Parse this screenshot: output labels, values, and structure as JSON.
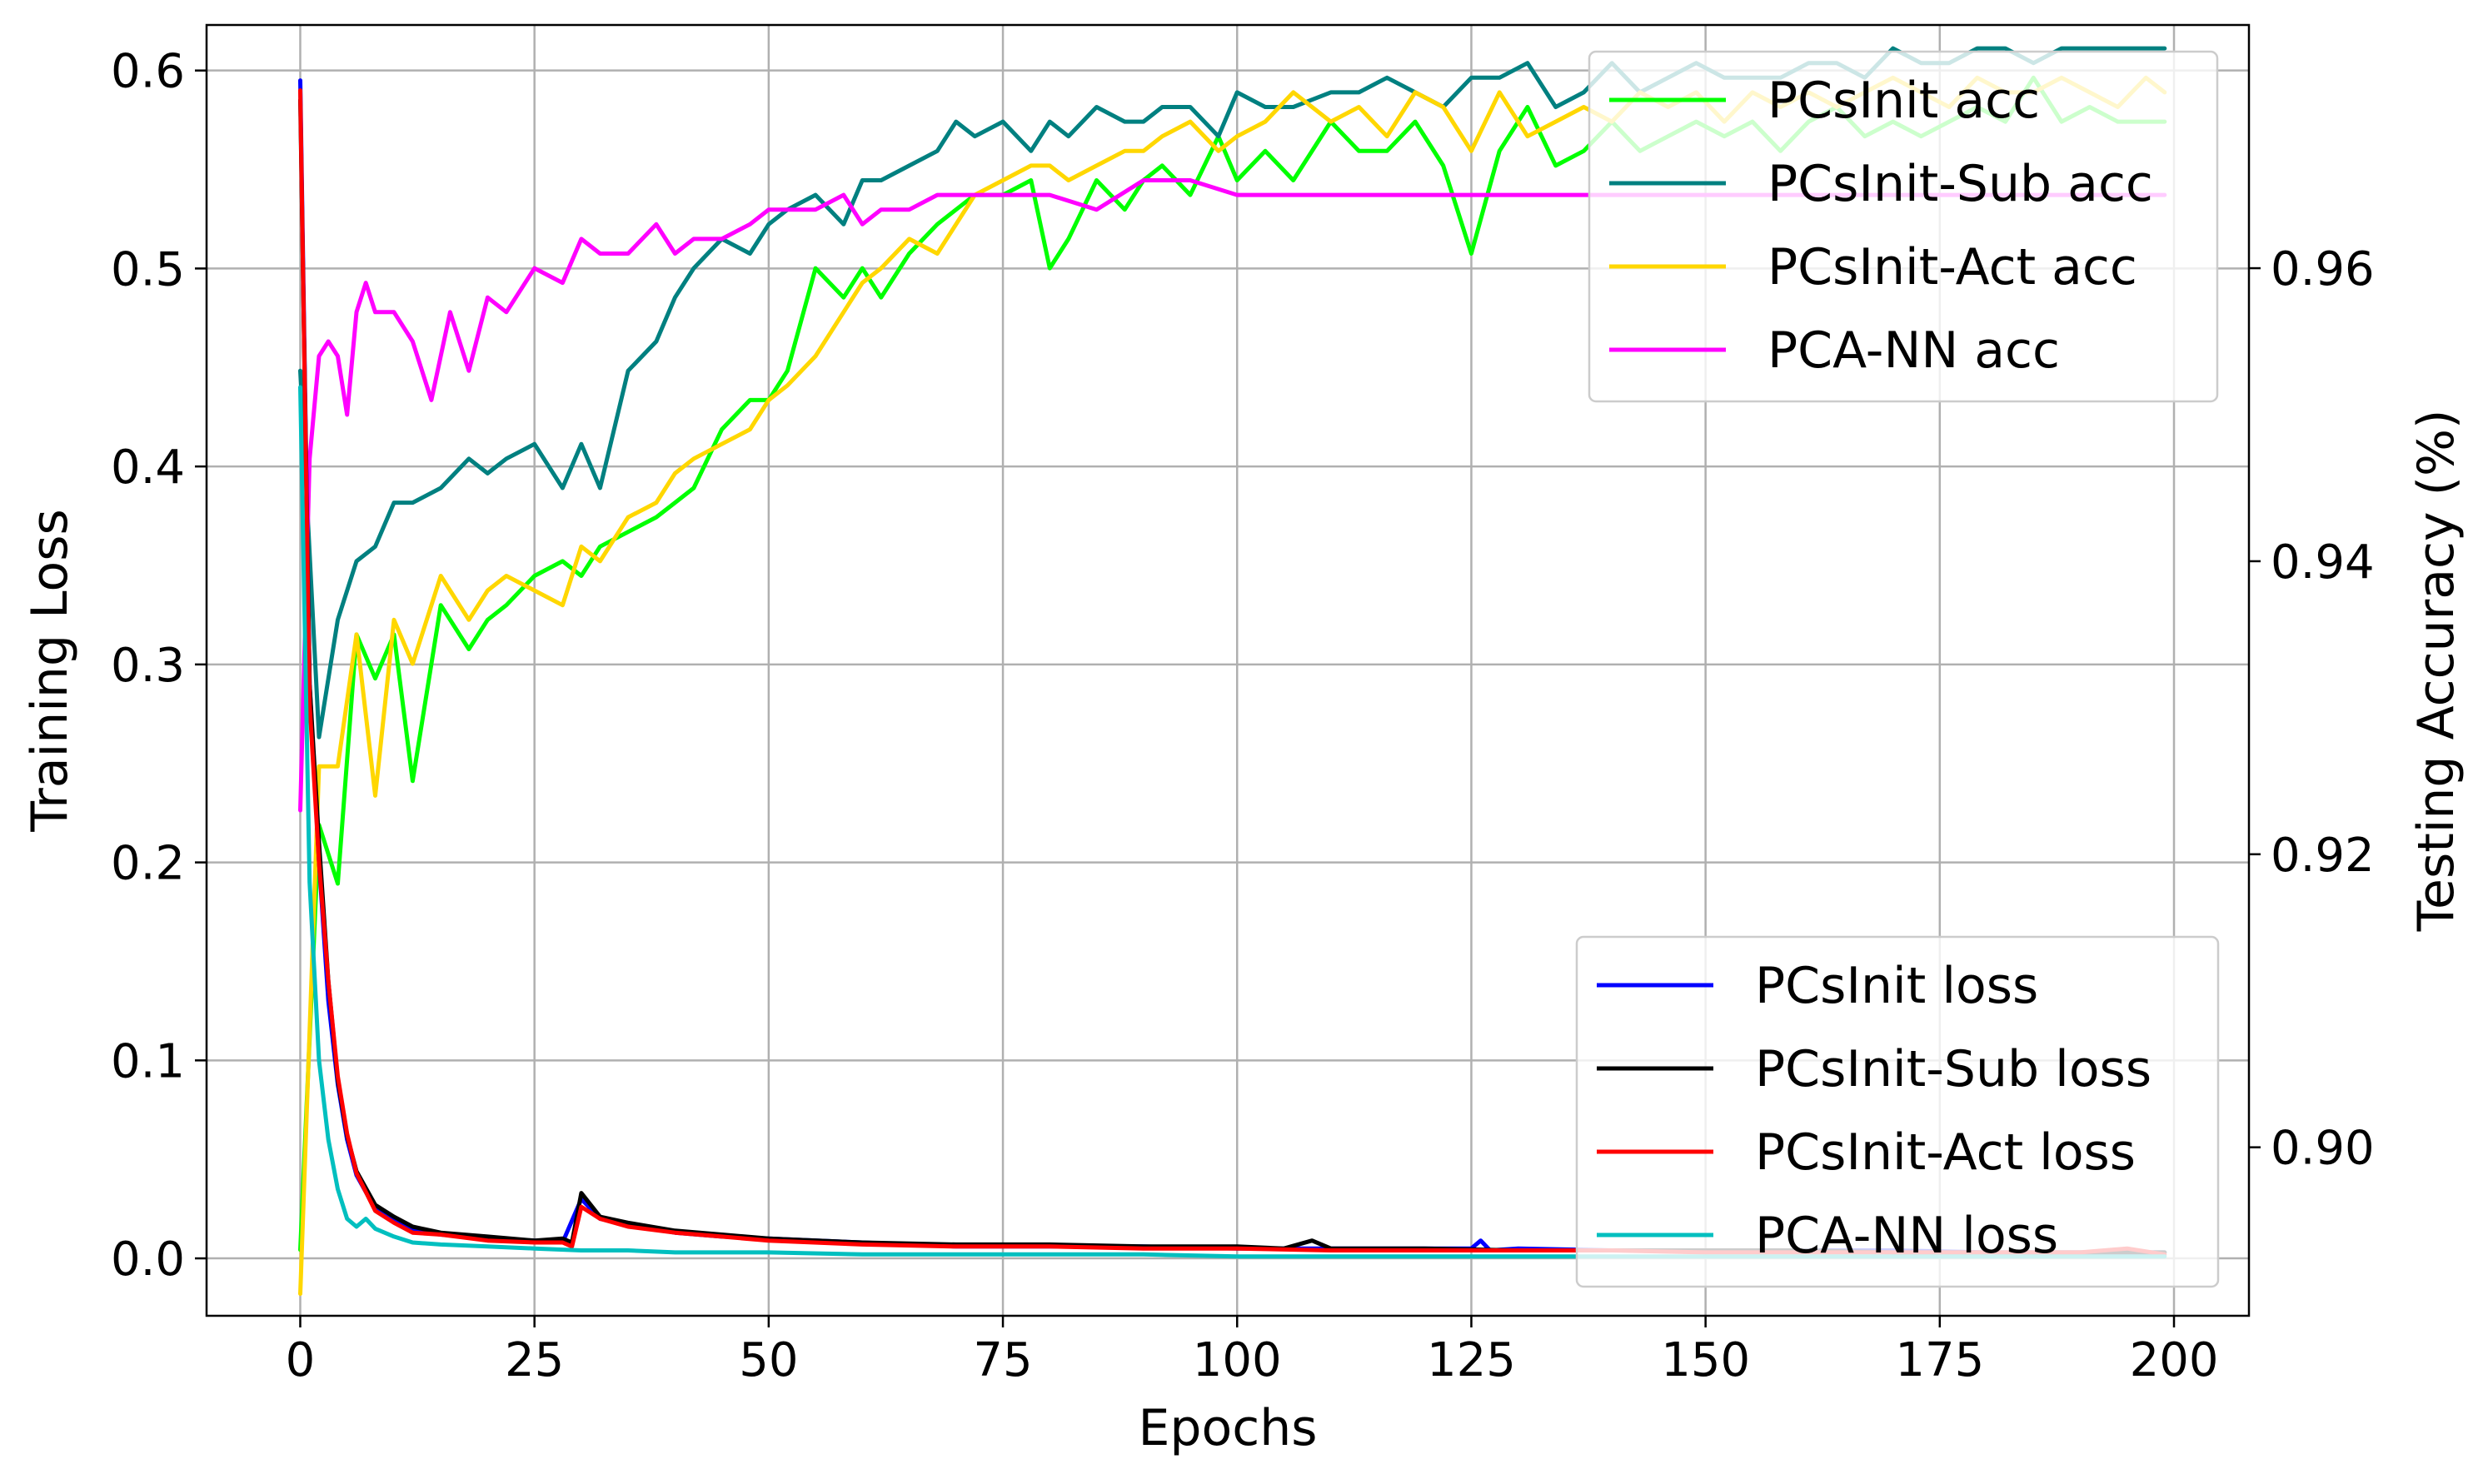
{
  "chart_data": {
    "type": "line",
    "xlabel": "Epochs",
    "ylabel": "Training Loss",
    "y2label": "Testing Accuracy (%)",
    "xlim": [
      -10,
      208
    ],
    "ylim": [
      -0.029,
      0.623
    ],
    "y2lim": [
      0.8885,
      0.9766
    ],
    "xticks": [
      0,
      25,
      50,
      75,
      100,
      125,
      150,
      175,
      200
    ],
    "yticks": [
      0.0,
      0.1,
      0.2,
      0.3,
      0.4,
      0.5,
      0.6
    ],
    "y2ticks": [
      0.9,
      0.92,
      0.94,
      0.96
    ],
    "xtick_labels": [
      "0",
      "25",
      "50",
      "75",
      "100",
      "125",
      "150",
      "175",
      "200"
    ],
    "ytick_labels": [
      "0.0",
      "0.1",
      "0.2",
      "0.3",
      "0.4",
      "0.5",
      "0.6"
    ],
    "y2tick_labels": [
      "0.90",
      "0.92",
      "0.94",
      "0.96"
    ],
    "grid": true,
    "acc_legend_position": "upper right",
    "loss_legend_position": "lower right",
    "acc_series": [
      {
        "name": "PCsInit acc",
        "color": "#00ff00",
        "x": [
          0,
          2,
          4,
          6,
          8,
          10,
          12,
          15,
          18,
          20,
          22,
          25,
          28,
          30,
          32,
          35,
          38,
          40,
          42,
          45,
          48,
          50,
          52,
          55,
          58,
          60,
          62,
          65,
          68,
          70,
          72,
          75,
          78,
          80,
          82,
          85,
          88,
          90,
          92,
          95,
          98,
          100,
          103,
          106,
          110,
          113,
          116,
          119,
          122,
          125,
          128,
          131,
          134,
          137,
          140,
          143,
          146,
          149,
          152,
          155,
          158,
          161,
          164,
          167,
          170,
          173,
          176,
          179,
          182,
          185,
          188,
          191,
          194,
          197,
          199
        ],
        "y": [
          0.893,
          0.922,
          0.918,
          0.935,
          0.932,
          0.935,
          0.925,
          0.937,
          0.934,
          0.936,
          0.937,
          0.939,
          0.94,
          0.939,
          0.941,
          0.942,
          0.943,
          0.944,
          0.945,
          0.949,
          0.951,
          0.951,
          0.953,
          0.96,
          0.958,
          0.96,
          0.958,
          0.961,
          0.963,
          0.964,
          0.965,
          0.965,
          0.966,
          0.96,
          0.962,
          0.966,
          0.964,
          0.966,
          0.967,
          0.965,
          0.969,
          0.966,
          0.968,
          0.966,
          0.97,
          0.968,
          0.968,
          0.97,
          0.967,
          0.961,
          0.968,
          0.971,
          0.967,
          0.968,
          0.97,
          0.968,
          0.969,
          0.97,
          0.969,
          0.97,
          0.968,
          0.97,
          0.971,
          0.969,
          0.97,
          0.969,
          0.97,
          0.971,
          0.97,
          0.973,
          0.97,
          0.971,
          0.97,
          0.97,
          0.97
        ]
      },
      {
        "name": "PCsInit-Sub acc",
        "color": "#008080",
        "x": [
          0,
          2,
          4,
          6,
          8,
          10,
          12,
          15,
          18,
          20,
          22,
          25,
          28,
          30,
          32,
          35,
          38,
          40,
          42,
          45,
          48,
          50,
          52,
          55,
          58,
          60,
          62,
          65,
          68,
          70,
          72,
          75,
          78,
          80,
          82,
          85,
          88,
          90,
          92,
          95,
          98,
          100,
          103,
          106,
          110,
          113,
          116,
          119,
          122,
          125,
          128,
          131,
          134,
          137,
          140,
          143,
          146,
          149,
          152,
          155,
          158,
          161,
          164,
          167,
          170,
          173,
          176,
          179,
          182,
          185,
          188,
          191,
          194,
          197,
          199
        ],
        "y": [
          0.953,
          0.928,
          0.936,
          0.94,
          0.941,
          0.944,
          0.944,
          0.945,
          0.947,
          0.946,
          0.947,
          0.948,
          0.945,
          0.948,
          0.945,
          0.953,
          0.955,
          0.958,
          0.96,
          0.962,
          0.961,
          0.963,
          0.964,
          0.965,
          0.963,
          0.966,
          0.966,
          0.967,
          0.968,
          0.97,
          0.969,
          0.97,
          0.968,
          0.97,
          0.969,
          0.971,
          0.97,
          0.97,
          0.971,
          0.971,
          0.969,
          0.972,
          0.971,
          0.971,
          0.972,
          0.972,
          0.973,
          0.972,
          0.971,
          0.973,
          0.973,
          0.974,
          0.971,
          0.972,
          0.974,
          0.972,
          0.973,
          0.974,
          0.973,
          0.973,
          0.973,
          0.974,
          0.974,
          0.973,
          0.975,
          0.974,
          0.974,
          0.975,
          0.975,
          0.974,
          0.975,
          0.975,
          0.975,
          0.975,
          0.975
        ]
      },
      {
        "name": "PCsInit-Act acc",
        "color": "#ffd700",
        "x": [
          0,
          2,
          4,
          6,
          8,
          10,
          12,
          15,
          18,
          20,
          22,
          25,
          28,
          30,
          32,
          35,
          38,
          40,
          42,
          45,
          48,
          50,
          52,
          55,
          58,
          60,
          62,
          65,
          68,
          70,
          72,
          75,
          78,
          80,
          82,
          85,
          88,
          90,
          92,
          95,
          98,
          100,
          103,
          106,
          110,
          113,
          116,
          119,
          122,
          125,
          128,
          131,
          134,
          137,
          140,
          143,
          146,
          149,
          152,
          155,
          158,
          161,
          164,
          167,
          170,
          173,
          176,
          179,
          182,
          185,
          188,
          191,
          194,
          197,
          199
        ],
        "y": [
          0.89,
          0.926,
          0.926,
          0.935,
          0.924,
          0.936,
          0.933,
          0.939,
          0.936,
          0.938,
          0.939,
          0.938,
          0.937,
          0.941,
          0.94,
          0.943,
          0.944,
          0.946,
          0.947,
          0.948,
          0.949,
          0.951,
          0.952,
          0.954,
          0.957,
          0.959,
          0.96,
          0.962,
          0.961,
          0.963,
          0.965,
          0.966,
          0.967,
          0.967,
          0.966,
          0.967,
          0.968,
          0.968,
          0.969,
          0.97,
          0.968,
          0.969,
          0.97,
          0.972,
          0.97,
          0.971,
          0.969,
          0.972,
          0.971,
          0.968,
          0.972,
          0.969,
          0.97,
          0.971,
          0.97,
          0.972,
          0.971,
          0.972,
          0.97,
          0.972,
          0.971,
          0.972,
          0.971,
          0.972,
          0.973,
          0.972,
          0.971,
          0.973,
          0.972,
          0.972,
          0.973,
          0.972,
          0.971,
          0.973,
          0.972
        ]
      },
      {
        "name": "PCA-NN acc",
        "color": "#ff00ff",
        "x": [
          0,
          1,
          2,
          3,
          4,
          5,
          6,
          7,
          8,
          10,
          12,
          14,
          16,
          18,
          20,
          22,
          25,
          28,
          30,
          32,
          35,
          38,
          40,
          42,
          45,
          48,
          50,
          52,
          55,
          58,
          60,
          62,
          65,
          68,
          70,
          75,
          80,
          85,
          90,
          95,
          100,
          105,
          110,
          115,
          120,
          125,
          130,
          140,
          150,
          160,
          170,
          180,
          190,
          199
        ],
        "y": [
          0.923,
          0.947,
          0.954,
          0.955,
          0.954,
          0.95,
          0.957,
          0.959,
          0.957,
          0.957,
          0.955,
          0.951,
          0.957,
          0.953,
          0.958,
          0.957,
          0.96,
          0.959,
          0.962,
          0.961,
          0.961,
          0.963,
          0.961,
          0.962,
          0.962,
          0.963,
          0.964,
          0.964,
          0.964,
          0.965,
          0.963,
          0.964,
          0.964,
          0.965,
          0.965,
          0.965,
          0.965,
          0.964,
          0.966,
          0.966,
          0.965,
          0.965,
          0.965,
          0.965,
          0.965,
          0.965,
          0.965,
          0.965,
          0.965,
          0.965,
          0.965,
          0.965,
          0.965,
          0.965
        ]
      }
    ],
    "loss_series": [
      {
        "name": "PCsInit loss",
        "color": "#0000ff",
        "x": [
          0,
          1,
          2,
          3,
          4,
          5,
          6,
          8,
          10,
          12,
          15,
          20,
          25,
          28,
          30,
          32,
          35,
          40,
          45,
          50,
          60,
          70,
          80,
          90,
          100,
          110,
          120,
          125,
          126,
          127,
          130,
          140,
          150,
          160,
          170,
          180,
          190,
          199
        ],
        "y": [
          0.595,
          0.29,
          0.2,
          0.13,
          0.088,
          0.06,
          0.042,
          0.025,
          0.019,
          0.014,
          0.012,
          0.01,
          0.009,
          0.008,
          0.03,
          0.02,
          0.017,
          0.013,
          0.011,
          0.01,
          0.008,
          0.006,
          0.006,
          0.006,
          0.005,
          0.005,
          0.005,
          0.005,
          0.009,
          0.004,
          0.005,
          0.004,
          0.004,
          0.004,
          0.004,
          0.003,
          0.003,
          0.003
        ]
      },
      {
        "name": "PCsInit-Sub loss",
        "color": "#000000",
        "x": [
          0,
          1,
          2,
          3,
          4,
          5,
          6,
          8,
          10,
          12,
          15,
          20,
          25,
          28,
          29,
          30,
          32,
          35,
          40,
          45,
          50,
          60,
          70,
          80,
          90,
          100,
          105,
          108,
          110,
          120,
          130,
          140,
          150,
          160,
          170,
          180,
          190,
          199
        ],
        "y": [
          0.585,
          0.29,
          0.21,
          0.14,
          0.09,
          0.062,
          0.044,
          0.027,
          0.021,
          0.016,
          0.013,
          0.011,
          0.009,
          0.01,
          0.008,
          0.033,
          0.021,
          0.018,
          0.014,
          0.012,
          0.01,
          0.008,
          0.007,
          0.007,
          0.006,
          0.006,
          0.005,
          0.009,
          0.005,
          0.005,
          0.004,
          0.004,
          0.004,
          0.004,
          0.003,
          0.003,
          0.003,
          0.003
        ]
      },
      {
        "name": "PCsInit-Act loss",
        "color": "#ff0000",
        "x": [
          0,
          1,
          2,
          3,
          4,
          5,
          6,
          8,
          10,
          12,
          15,
          20,
          25,
          28,
          29,
          30,
          32,
          35,
          40,
          45,
          50,
          60,
          70,
          80,
          90,
          100,
          110,
          120,
          130,
          140,
          150,
          160,
          170,
          180,
          190,
          195,
          199
        ],
        "y": [
          0.59,
          0.28,
          0.2,
          0.14,
          0.092,
          0.063,
          0.043,
          0.024,
          0.018,
          0.013,
          0.012,
          0.009,
          0.008,
          0.008,
          0.006,
          0.026,
          0.02,
          0.016,
          0.013,
          0.011,
          0.009,
          0.007,
          0.006,
          0.006,
          0.005,
          0.005,
          0.004,
          0.004,
          0.004,
          0.004,
          0.003,
          0.003,
          0.003,
          0.003,
          0.003,
          0.005,
          0.002
        ]
      },
      {
        "name": "PCA-NN loss",
        "color": "#00bfbf",
        "x": [
          0,
          1,
          2,
          3,
          4,
          5,
          6,
          7,
          8,
          10,
          12,
          15,
          20,
          25,
          30,
          35,
          40,
          50,
          60,
          70,
          80,
          90,
          100,
          110,
          120,
          130,
          140,
          150,
          160,
          170,
          180,
          190,
          199
        ],
        "y": [
          0.44,
          0.19,
          0.1,
          0.06,
          0.035,
          0.02,
          0.016,
          0.02,
          0.015,
          0.011,
          0.008,
          0.007,
          0.006,
          0.005,
          0.004,
          0.004,
          0.003,
          0.003,
          0.002,
          0.002,
          0.002,
          0.002,
          0.001,
          0.001,
          0.001,
          0.001,
          0.001,
          0.001,
          0.001,
          0.001,
          0.001,
          0.001,
          0.001
        ]
      }
    ]
  }
}
